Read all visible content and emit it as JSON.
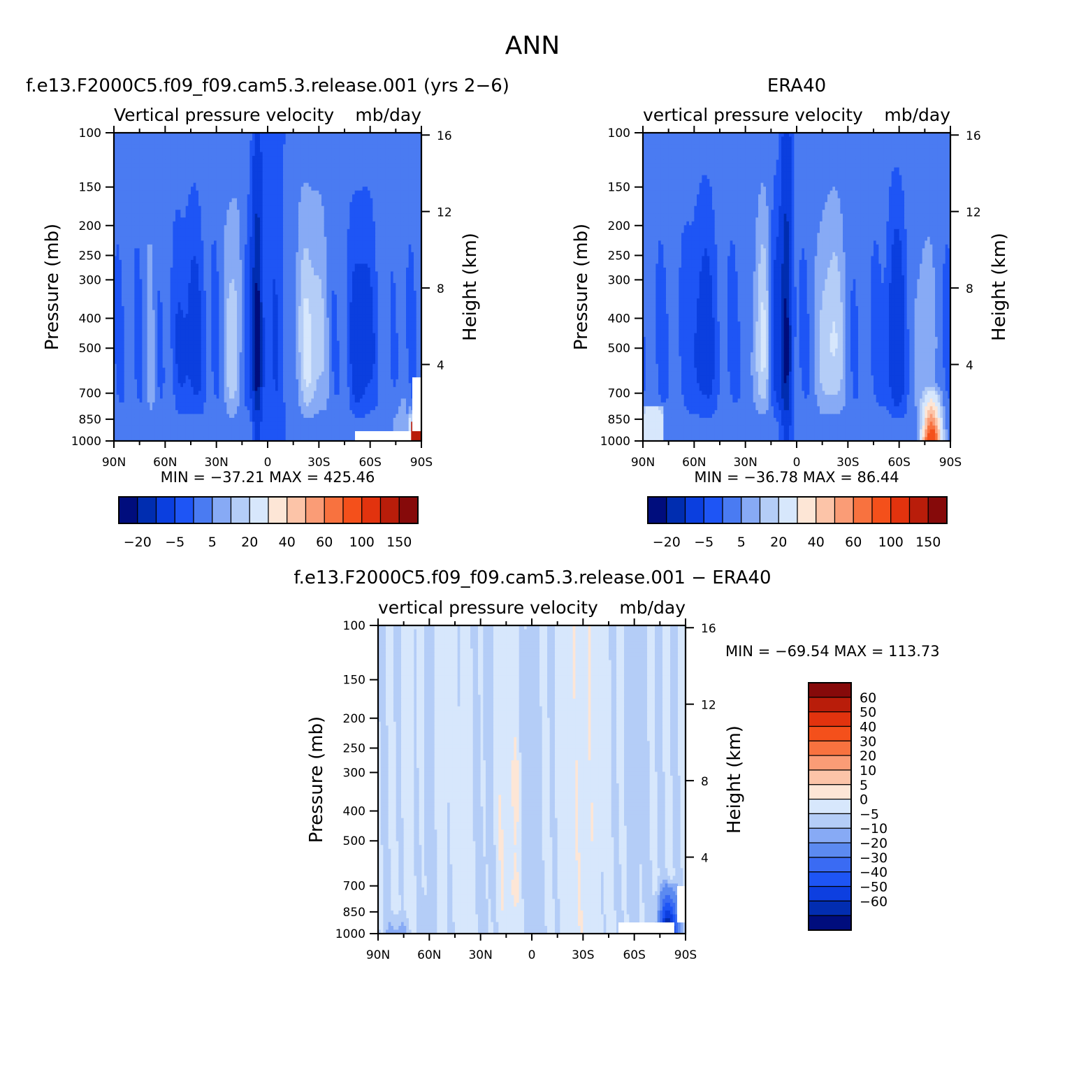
{
  "page_title": "ANN",
  "colors": {
    "scale13": [
      "#000d7d",
      "#002db0",
      "#0b3fdf",
      "#1e55f5",
      "#4a7bf2",
      "#87aaf5",
      "#b4cdf7",
      "#d7e7fc",
      "#fde6d6",
      "#fcc4a8",
      "#fa9c76",
      "#f8723f",
      "#f4501b",
      "#e2330e",
      "#b91d0a",
      "#860a0a"
    ],
    "diff": [
      "#000d7d",
      "#022db0",
      "#0d3fe0",
      "#1e55f5",
      "#3a6bf3",
      "#5c8af0",
      "#87aaf5",
      "#b4cdf7",
      "#d7e7fc",
      "#fde6d6",
      "#fcc4a8",
      "#fa9c76",
      "#f8723f",
      "#f4501b",
      "#e2330e",
      "#b91d0a",
      "#860a0a"
    ]
  },
  "chart_data": [
    {
      "id": "model",
      "type": "contour",
      "title": "f.e13.F2000C5.f09_f09.cam5.3.release.001 (yrs 2−6)",
      "subtitle_left": "Vertical pressure velocity",
      "subtitle_right": "mb/day",
      "ylabel": "Pressure (mb)",
      "y2label": "Height (km)",
      "x_ticks": [
        "90N",
        "60N",
        "30N",
        "0",
        "30S",
        "60S",
        "90S"
      ],
      "x_range": [
        90,
        -90
      ],
      "y_ticks": [
        "100",
        "150",
        "200",
        "250",
        "300",
        "400",
        "500",
        "700",
        "850",
        "1000"
      ],
      "y_range_mb": [
        100,
        1000
      ],
      "height_ticks": [
        "16",
        "12",
        "8",
        "4"
      ],
      "min_max": "MIN = −37.21   MAX = 425.46",
      "levels": [
        -30,
        -20,
        -10,
        -5,
        0,
        5,
        10,
        20,
        30,
        40,
        50,
        60,
        80,
        100,
        150
      ],
      "colorbar_labels": [
        "−20",
        "−5",
        "5",
        "20",
        "40",
        "60",
        "100",
        "150"
      ]
    },
    {
      "id": "obs",
      "type": "contour",
      "title": "ERA40",
      "subtitle_left": "vertical pressure velocity",
      "subtitle_right": "mb/day",
      "ylabel": "Pressure (mb)",
      "y2label": "Height (km)",
      "x_ticks": [
        "90N",
        "60N",
        "30N",
        "0",
        "30S",
        "60S",
        "90S"
      ],
      "x_range": [
        90,
        -90
      ],
      "y_ticks": [
        "100",
        "150",
        "200",
        "250",
        "300",
        "400",
        "500",
        "700",
        "850",
        "1000"
      ],
      "y_range_mb": [
        100,
        1000
      ],
      "height_ticks": [
        "16",
        "12",
        "8",
        "4"
      ],
      "min_max": "MIN = −36.78   MAX =   86.44",
      "levels": [
        -30,
        -20,
        -10,
        -5,
        0,
        5,
        10,
        20,
        30,
        40,
        50,
        60,
        80,
        100,
        150
      ],
      "colorbar_labels": [
        "−20",
        "−5",
        "5",
        "20",
        "40",
        "60",
        "100",
        "150"
      ]
    },
    {
      "id": "diff",
      "type": "contour",
      "title": "f.e13.F2000C5.f09_f09.cam5.3.release.001 − ERA40",
      "subtitle_left": "vertical pressure velocity",
      "subtitle_right": "mb/day",
      "ylabel": "Pressure (mb)",
      "y2label": "Height (km)",
      "x_ticks": [
        "90N",
        "60N",
        "30N",
        "0",
        "30S",
        "60S",
        "90S"
      ],
      "x_range": [
        90,
        -90
      ],
      "y_ticks": [
        "100",
        "150",
        "200",
        "250",
        "300",
        "400",
        "500",
        "700",
        "850",
        "1000"
      ],
      "y_range_mb": [
        100,
        1000
      ],
      "height_ticks": [
        "16",
        "12",
        "8",
        "4"
      ],
      "min_max": "MIN = −69.54   MAX = 113.73",
      "levels": [
        -60,
        -50,
        -40,
        -30,
        -20,
        -10,
        -5,
        0,
        5,
        10,
        20,
        30,
        40,
        50,
        60
      ],
      "colorbar_labels": [
        "60",
        "50",
        "40",
        "30",
        "20",
        "10",
        "5",
        "0",
        "−5",
        "−10",
        "−20",
        "−30",
        "−40",
        "−50",
        "−60"
      ]
    }
  ]
}
